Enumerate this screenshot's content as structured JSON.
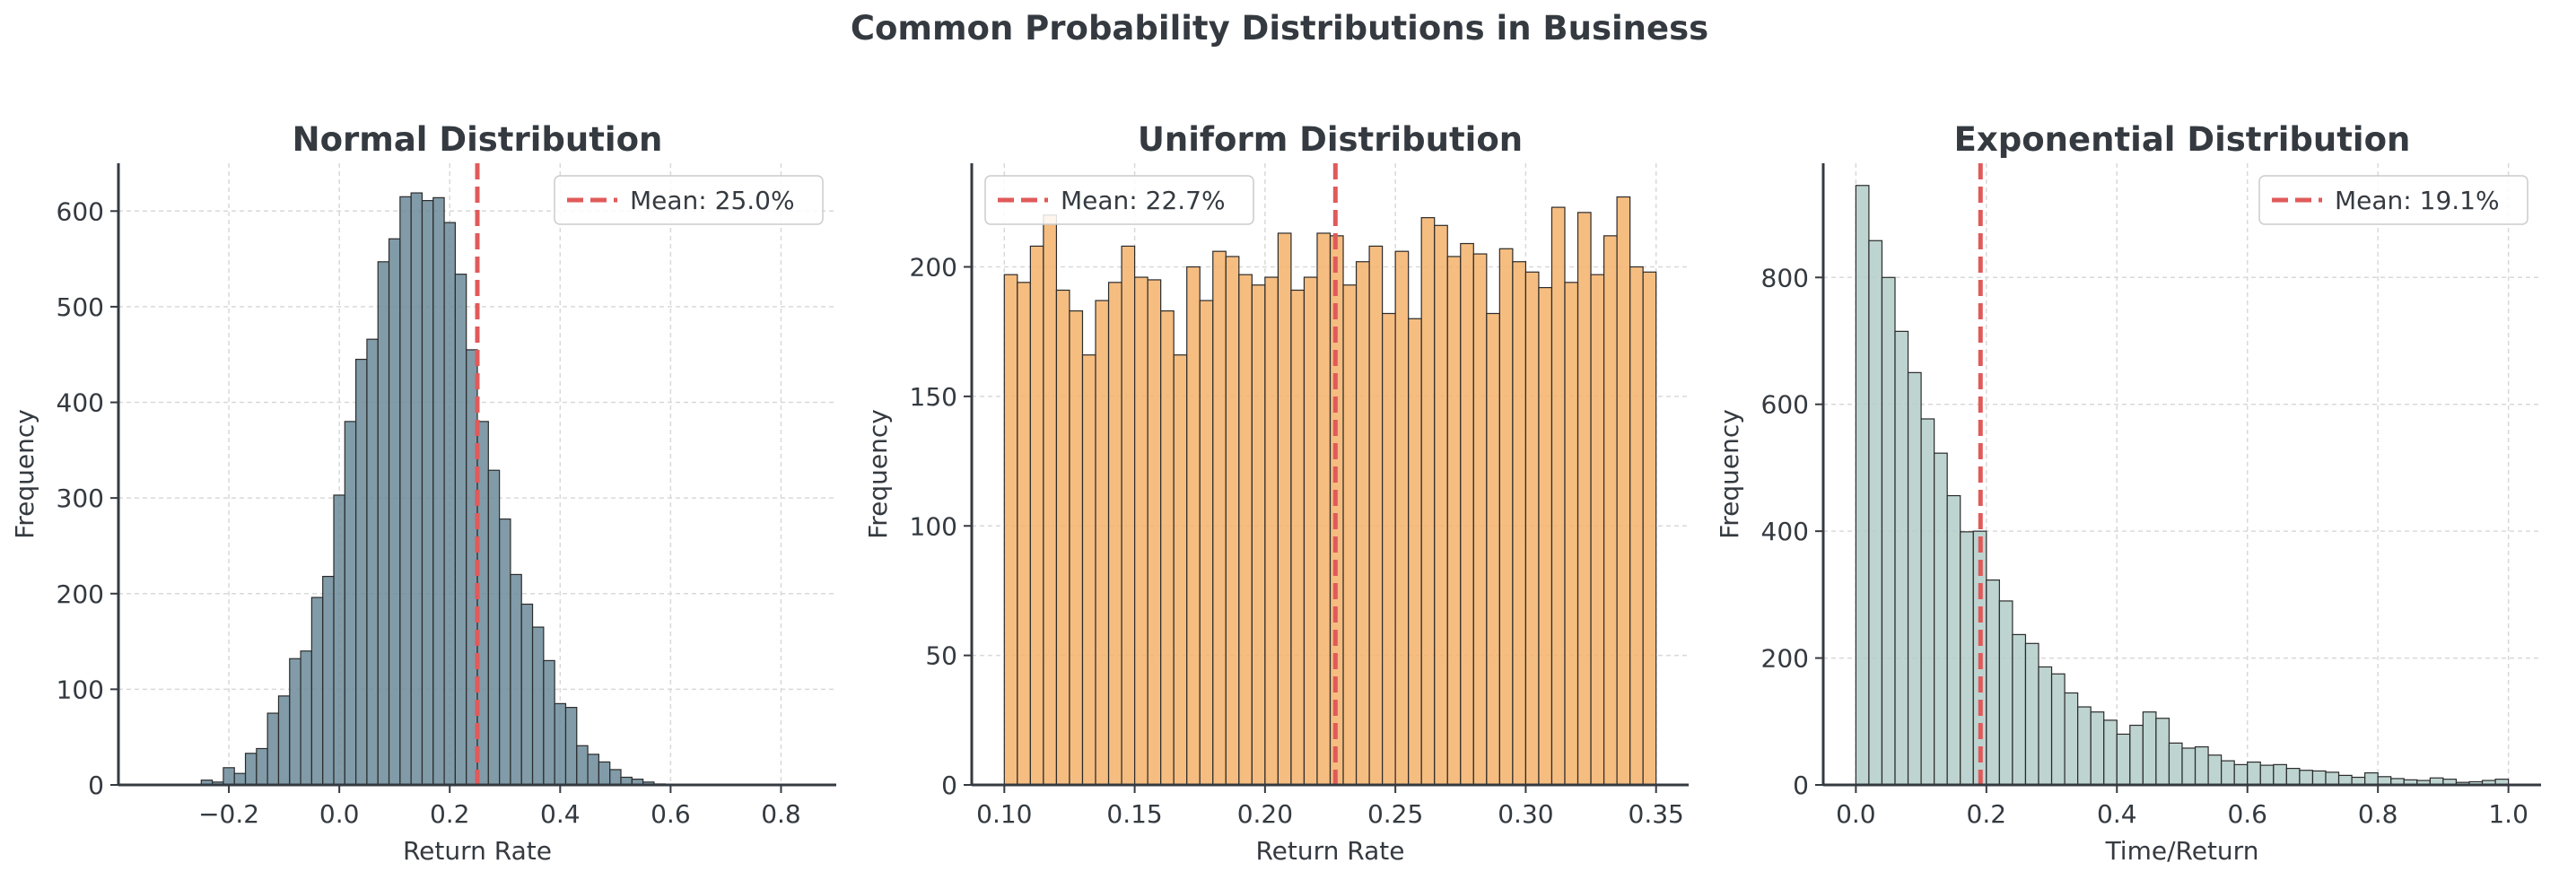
{
  "suptitle": "Common Probability Distributions in Business",
  "colors": {
    "normal": "#6b8a99",
    "uniform": "#f5b26b",
    "exponential": "#b3cdc8",
    "mean_line": "#e05a5a",
    "axis": "#343a40",
    "grid": "#d9d9d9"
  },
  "chart_data": [
    {
      "type": "bar",
      "title": "Normal Distribution",
      "xlabel": "Return Rate",
      "ylabel": "Frequency",
      "xlim": [
        -0.4,
        0.9
      ],
      "ylim": [
        0,
        650
      ],
      "xticks": [
        -0.2,
        0.0,
        0.2,
        0.4,
        0.6,
        0.8
      ],
      "xtick_labels": [
        "−0.2",
        "0.0",
        "0.2",
        "0.4",
        "0.6",
        "0.8"
      ],
      "yticks": [
        0,
        100,
        200,
        300,
        400,
        500,
        600
      ],
      "bin_start": -0.25,
      "bin_width": 0.02,
      "values": [
        5,
        3,
        18,
        12,
        33,
        38,
        75,
        93,
        132,
        140,
        196,
        218,
        303,
        380,
        445,
        466,
        547,
        571,
        615,
        619,
        611,
        614,
        588,
        534,
        455,
        380,
        329,
        278,
        220,
        189,
        165,
        130,
        85,
        81,
        41,
        32,
        24,
        16,
        8,
        6,
        3,
        1
      ],
      "mean": 0.25,
      "mean_label": "Mean: 25.0%",
      "legend_loc": "upper right",
      "grid": true,
      "color": "#6b8a99"
    },
    {
      "type": "bar",
      "title": "Uniform Distribution",
      "xlabel": "Return Rate",
      "ylabel": "Frequency",
      "xlim": [
        0.0875,
        0.3625
      ],
      "ylim": [
        0,
        240
      ],
      "xticks": [
        0.1,
        0.15,
        0.2,
        0.25,
        0.3,
        0.35
      ],
      "xtick_labels": [
        "0.10",
        "0.15",
        "0.20",
        "0.25",
        "0.30",
        "0.35"
      ],
      "yticks": [
        0,
        50,
        100,
        150,
        200
      ],
      "bin_start": 0.1,
      "bin_width": 0.005,
      "values": [
        197,
        194,
        208,
        220,
        191,
        183,
        166,
        187,
        194,
        208,
        196,
        195,
        183,
        166,
        200,
        187,
        206,
        204,
        197,
        193,
        196,
        213,
        191,
        196,
        213,
        212,
        193,
        202,
        208,
        182,
        206,
        180,
        219,
        216,
        204,
        209,
        205,
        182,
        207,
        202,
        198,
        192,
        223,
        194,
        221,
        197,
        212,
        227,
        200,
        198
      ],
      "mean": 0.227,
      "mean_label": "Mean: 22.7%",
      "legend_loc": "upper left",
      "grid": true,
      "color": "#f5b26b"
    },
    {
      "type": "bar",
      "title": "Exponential Distribution",
      "xlabel": "Time/Return",
      "ylabel": "Frequency",
      "xlim": [
        -0.05,
        1.05
      ],
      "ylim": [
        0,
        980
      ],
      "xticks": [
        0.0,
        0.2,
        0.4,
        0.6,
        0.8,
        1.0
      ],
      "xtick_labels": [
        "0.0",
        "0.2",
        "0.4",
        "0.6",
        "0.8",
        "1.0"
      ],
      "yticks": [
        0,
        200,
        400,
        600,
        800
      ],
      "bin_start": 0.0,
      "bin_width": 0.02,
      "values": [
        945,
        858,
        800,
        715,
        650,
        577,
        523,
        456,
        399,
        400,
        323,
        290,
        237,
        223,
        186,
        175,
        145,
        123,
        115,
        102,
        80,
        94,
        115,
        105,
        66,
        58,
        60,
        47,
        38,
        32,
        36,
        31,
        32,
        26,
        23,
        22,
        20,
        15,
        12,
        19,
        13,
        10,
        8,
        7,
        11,
        9,
        4,
        5,
        7,
        9
      ],
      "mean": 0.191,
      "mean_label": "Mean: 19.1%",
      "legend_loc": "upper right",
      "grid": true,
      "color": "#b3cdc8"
    }
  ]
}
